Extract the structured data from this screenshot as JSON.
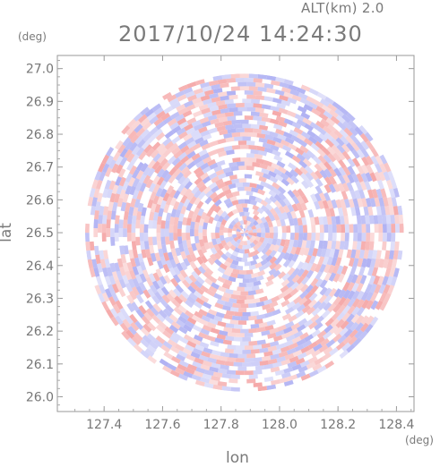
{
  "header": {
    "altitude_label": "ALT(km) 2.0",
    "timestamp": "2017/10/24 14:24:30"
  },
  "chart_data": {
    "type": "heatmap",
    "title": "2017/10/24 14:24:30",
    "subtitle": "ALT(km) 2.0",
    "xlabel": "lon",
    "ylabel": "lat",
    "x_unit": "(deg)",
    "y_unit": "(deg)",
    "xlim": [
      127.24,
      128.46
    ],
    "ylim": [
      25.955,
      27.04
    ],
    "x_ticks": [
      127.4,
      127.6,
      127.8,
      128.0,
      128.2,
      128.4
    ],
    "x_tick_labels": [
      "127.4",
      "127.6",
      "127.8",
      "128.0",
      "128.2",
      "128.4"
    ],
    "y_ticks": [
      26.0,
      26.1,
      26.2,
      26.3,
      26.4,
      26.5,
      26.6,
      26.7,
      26.8,
      26.9,
      27.0
    ],
    "y_tick_labels": [
      "26.0",
      "26.1",
      "26.2",
      "26.3",
      "26.4",
      "26.5",
      "26.6",
      "26.7",
      "26.8",
      "26.9",
      "27.0"
    ],
    "center": {
      "lon": 127.88,
      "lat": 26.5
    },
    "radius_deg": 0.545,
    "grid": false,
    "colormap": {
      "positive": "#f4a0a0",
      "negative": "#a8aaf2",
      "neutral": "#ffffff"
    }
  }
}
